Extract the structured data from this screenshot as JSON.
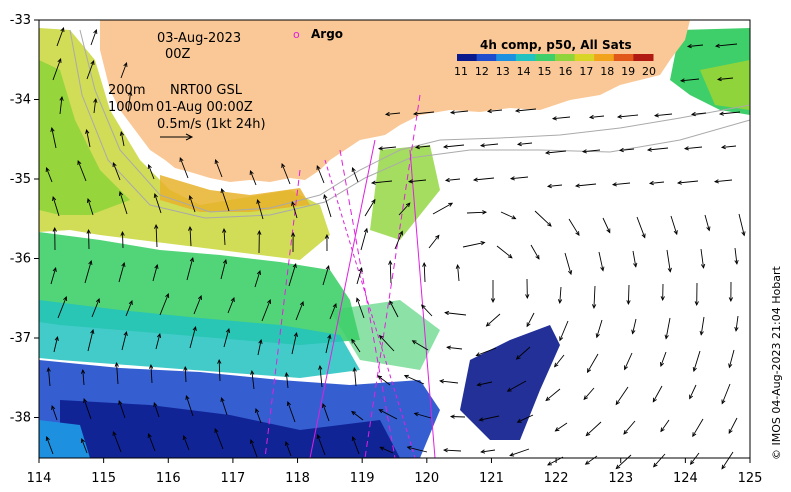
{
  "map": {
    "date": "03-Aug-2023",
    "hour": "00Z",
    "legend": {
      "isobath_200": "200m",
      "isobath_1000": "1000m",
      "product": "NRT00 GSL",
      "product_time": "01-Aug 00:00Z",
      "scale_arrow_label": "0.5m/s (1kt 24h)",
      "argo_marker": "o",
      "argo_label": "Argo"
    },
    "colorbar": {
      "title": "4h comp, p50, All Sats",
      "labels": [
        "11",
        "12",
        "13",
        "14",
        "15",
        "16",
        "17",
        "18",
        "19",
        "20"
      ],
      "colors": [
        "#0a1a8c",
        "#1f4ccc",
        "#1e90e0",
        "#22c2c0",
        "#3fcf6a",
        "#8fd43a",
        "#d8d526",
        "#f2a31c",
        "#e0581a",
        "#b01a12"
      ]
    },
    "lon_ticks": [
      "114",
      "115",
      "116",
      "117",
      "118",
      "119",
      "120",
      "121",
      "122",
      "123",
      "124",
      "125"
    ],
    "lat_ticks": [
      "-33",
      "-34",
      "-35",
      "-36",
      "-37",
      "-38"
    ],
    "credit": "© IMOS 04-Aug-2023 21:04 Hobart",
    "land_color": "#f9c896",
    "argo_color": "#e020e0"
  }
}
